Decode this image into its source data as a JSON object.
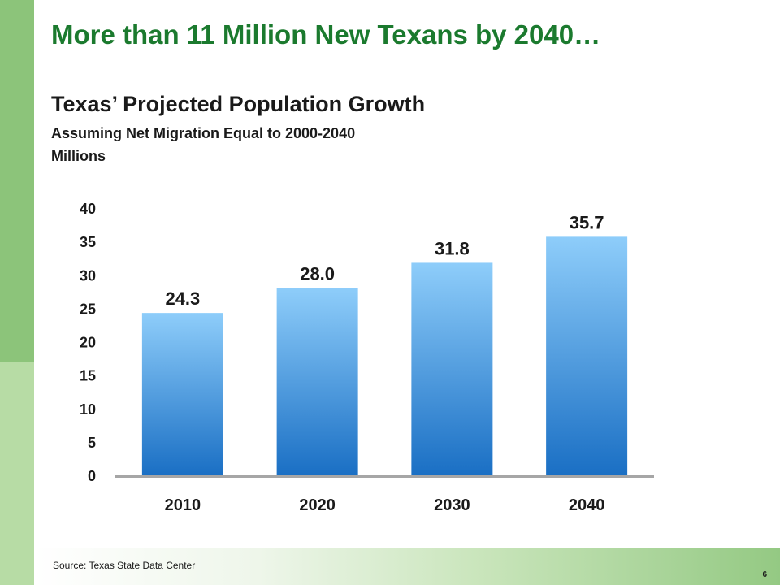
{
  "slide": {
    "title": "More than 11 Million New Texans by 2040…",
    "source": "Source: Texas State Data Center",
    "page_number": "6"
  },
  "chart_data": {
    "type": "bar",
    "title": "Texas’ Projected Population Growth",
    "subtitle": "Assuming Net Migration Equal to 2000-2040",
    "ylabel": "Millions",
    "xlabel": "",
    "categories": [
      "2010",
      "2020",
      "2030",
      "2040"
    ],
    "values": [
      24.3,
      28.0,
      31.8,
      35.7
    ],
    "data_labels": [
      "24.3",
      "28.0",
      "31.8",
      "35.7"
    ],
    "ylim": [
      0,
      40
    ],
    "yticks": [
      0,
      5,
      10,
      15,
      20,
      25,
      30,
      35,
      40
    ],
    "grid": false,
    "legend": "none",
    "colors": {
      "bar_top": "#8ecdfa",
      "bar_bottom": "#1a6fc4",
      "axis": "#a6a6a6"
    }
  }
}
